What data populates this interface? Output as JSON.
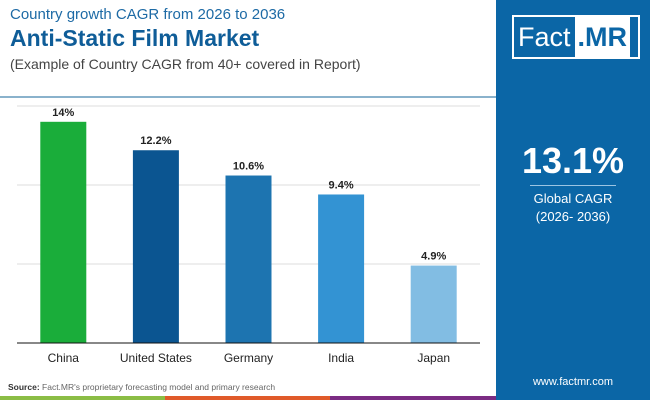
{
  "header": {
    "subtitle": "Country growth CAGR from 2026 to 2036",
    "title": "Anti-Static Film Market",
    "note": "(Example of Country CAGR from 40+ covered in Report)"
  },
  "logo": {
    "part1": "Fact",
    "part2": ".MR"
  },
  "summary": {
    "value": "13.1%",
    "label": "Global CAGR",
    "period": "(2026- 2036)"
  },
  "footer": {
    "source_label": "Source:",
    "source_text": "Fact.MR's proprietary forecasting model and primary research",
    "url": "www.factmr.com"
  },
  "chart_data": {
    "type": "bar",
    "categories": [
      "China",
      "United States",
      "Germany",
      "India",
      "Japan"
    ],
    "values": [
      14,
      12.2,
      10.6,
      9.4,
      4.9
    ],
    "labels": [
      "14%",
      "12.2%",
      "10.6%",
      "9.4%",
      "4.9%"
    ],
    "colors": [
      "#1aad3a",
      "#0b5591",
      "#1d74b0",
      "#3393d3",
      "#82bde3"
    ],
    "ylim": [
      0,
      15
    ],
    "grid": true,
    "ytick_values": [
      5,
      10,
      15
    ]
  }
}
